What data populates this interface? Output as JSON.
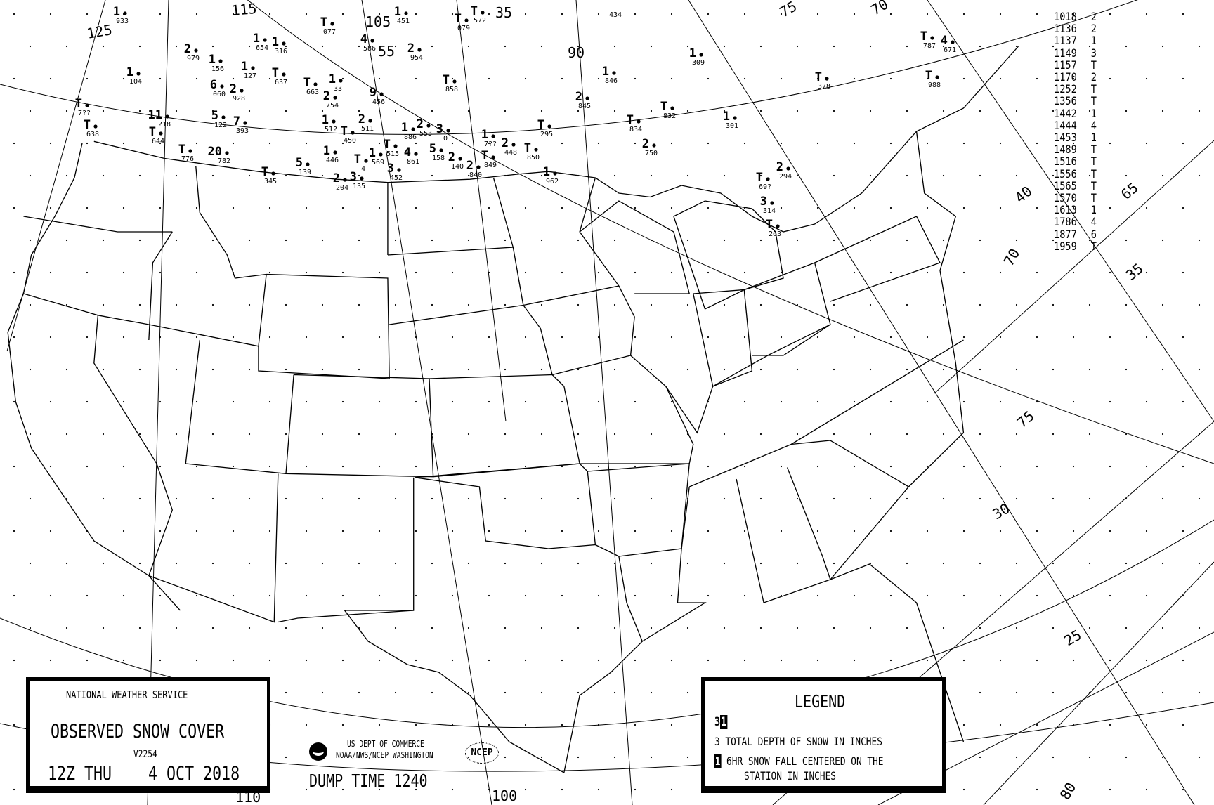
{
  "title_box": {
    "agency": "NATIONAL WEATHER SERVICE",
    "title": "OBSERVED SNOW COVER",
    "version": "V2254",
    "date": "12Z THU    4 OCT 2018"
  },
  "footer": {
    "dept_line1": "US DEPT OF COMMERCE",
    "dept_line2": "NOAA/NWS/NCEP WASHINGTON",
    "ncep_logo": "NCEP",
    "dump_time": "DUMP TIME 1240"
  },
  "legend": {
    "title": "LEGEND",
    "sample_depth": "3",
    "sample_fall": "1",
    "depth_text": "3 TOTAL DEPTH OF SNOW IN INCHES",
    "fall_text": "6HR SNOW FALL CENTERED ON THE",
    "fall_text2": "STATION IN INCHES"
  },
  "station_table": [
    {
      "id": "1018",
      "value": "2"
    },
    {
      "id": "1136",
      "value": "2"
    },
    {
      "id": "1137",
      "value": "1"
    },
    {
      "id": "1149",
      "value": "3"
    },
    {
      "id": "1157",
      "value": "T"
    },
    {
      "id": "1170",
      "value": "2"
    },
    {
      "id": "1252",
      "value": "T"
    },
    {
      "id": "1356",
      "value": "T"
    },
    {
      "id": "1442",
      "value": "1"
    },
    {
      "id": "1444",
      "value": "4"
    },
    {
      "id": "1453",
      "value": "1"
    },
    {
      "id": "1489",
      "value": "T"
    },
    {
      "id": "1516",
      "value": "T"
    },
    {
      "id": "1556",
      "value": "T"
    },
    {
      "id": "1565",
      "value": "T"
    },
    {
      "id": "1570",
      "value": "T"
    },
    {
      "id": "1613",
      "value": "1"
    },
    {
      "id": "1786",
      "value": "4"
    },
    {
      "id": "1877",
      "value": "6"
    },
    {
      "id": "1959",
      "value": "T"
    }
  ],
  "stations": [
    {
      "v": "1",
      "id": "933"
    },
    {
      "v": "1",
      "id": "104"
    },
    {
      "v": "2",
      "id": "979"
    },
    {
      "v": "1",
      "id": "156"
    },
    {
      "v": "1",
      "id": "654"
    },
    {
      "v": "1",
      "id": "316"
    },
    {
      "v": "1",
      "id": "127"
    },
    {
      "v": "T",
      "id": "637"
    },
    {
      "v": "T",
      "id": "663"
    },
    {
      "v": "1",
      "id": "33"
    },
    {
      "v": "2",
      "id": "754"
    },
    {
      "v": "6",
      "id": "060"
    },
    {
      "v": "2",
      "id": "928"
    },
    {
      "v": "9",
      "id": "456"
    },
    {
      "v": "11",
      "id": "?18"
    },
    {
      "v": "5",
      "id": "122"
    },
    {
      "v": "7",
      "id": "393"
    },
    {
      "v": "T",
      "id": "644"
    },
    {
      "v": "T",
      "id": "776"
    },
    {
      "v": "20",
      "id": "782"
    },
    {
      "v": "T",
      "id": "638"
    },
    {
      "v": "T",
      "id": "7??"
    },
    {
      "v": "T",
      "id": "077"
    },
    {
      "v": "4",
      "id": "586"
    },
    {
      "v": "1",
      "id": "51?"
    },
    {
      "v": "T",
      "id": "450"
    },
    {
      "v": "2",
      "id": "511"
    },
    {
      "v": "1",
      "id": "446"
    },
    {
      "v": "5",
      "id": "139"
    },
    {
      "v": "T",
      "id": "345"
    },
    {
      "v": "2",
      "id": "204"
    },
    {
      "v": "3",
      "id": "135"
    },
    {
      "v": "T",
      "id": "4"
    },
    {
      "v": "1",
      "id": "569"
    },
    {
      "v": "1",
      "id": "451"
    },
    {
      "v": "T",
      "id": "079"
    },
    {
      "v": "T",
      "id": "572"
    },
    {
      "v": "2",
      "id": "954"
    },
    {
      "v": "T",
      "id": "858"
    },
    {
      "v": "1",
      "id": "846"
    },
    {
      "v": "2",
      "id": "845"
    },
    {
      "v": "T",
      "id": "295"
    },
    {
      "v": "1",
      "id": "886"
    },
    {
      "v": "2",
      "id": "553"
    },
    {
      "v": "3",
      "id": "0"
    },
    {
      "v": "T",
      "id": "515"
    },
    {
      "v": "4",
      "id": "861"
    },
    {
      "v": "5",
      "id": "158"
    },
    {
      "v": "2",
      "id": "140"
    },
    {
      "v": "3",
      "id": "452"
    },
    {
      "v": "1",
      "id": "7??"
    },
    {
      "v": "2",
      "id": "448"
    },
    {
      "v": "T",
      "id": "849"
    },
    {
      "v": "T",
      "id": "850"
    },
    {
      "v": "2",
      "id": "840"
    },
    {
      "v": "1",
      "id": "962"
    },
    {
      "v": "1",
      "id": "309"
    },
    {
      "v": "T",
      "id": "832"
    },
    {
      "v": "T",
      "id": "834"
    },
    {
      "v": "2",
      "id": "750"
    },
    {
      "v": "1",
      "id": "301"
    },
    {
      "v": "T",
      "id": "378"
    },
    {
      "v": "T",
      "id": "787"
    },
    {
      "v": "4",
      "id": "671"
    },
    {
      "v": "T",
      "id": "988"
    },
    {
      "v": "2",
      "id": "294"
    },
    {
      "v": "T",
      "id": "69?"
    },
    {
      "v": "3",
      "id": "314"
    },
    {
      "v": "T",
      "id": "263"
    },
    {
      "v": "",
      "id": "434"
    }
  ],
  "grid_labels": [
    "125",
    "115",
    "105",
    "55",
    "35",
    "90",
    "75",
    "70",
    "65",
    "35",
    "40",
    "75",
    "30",
    "25",
    "80",
    "100",
    "110",
    "70"
  ]
}
